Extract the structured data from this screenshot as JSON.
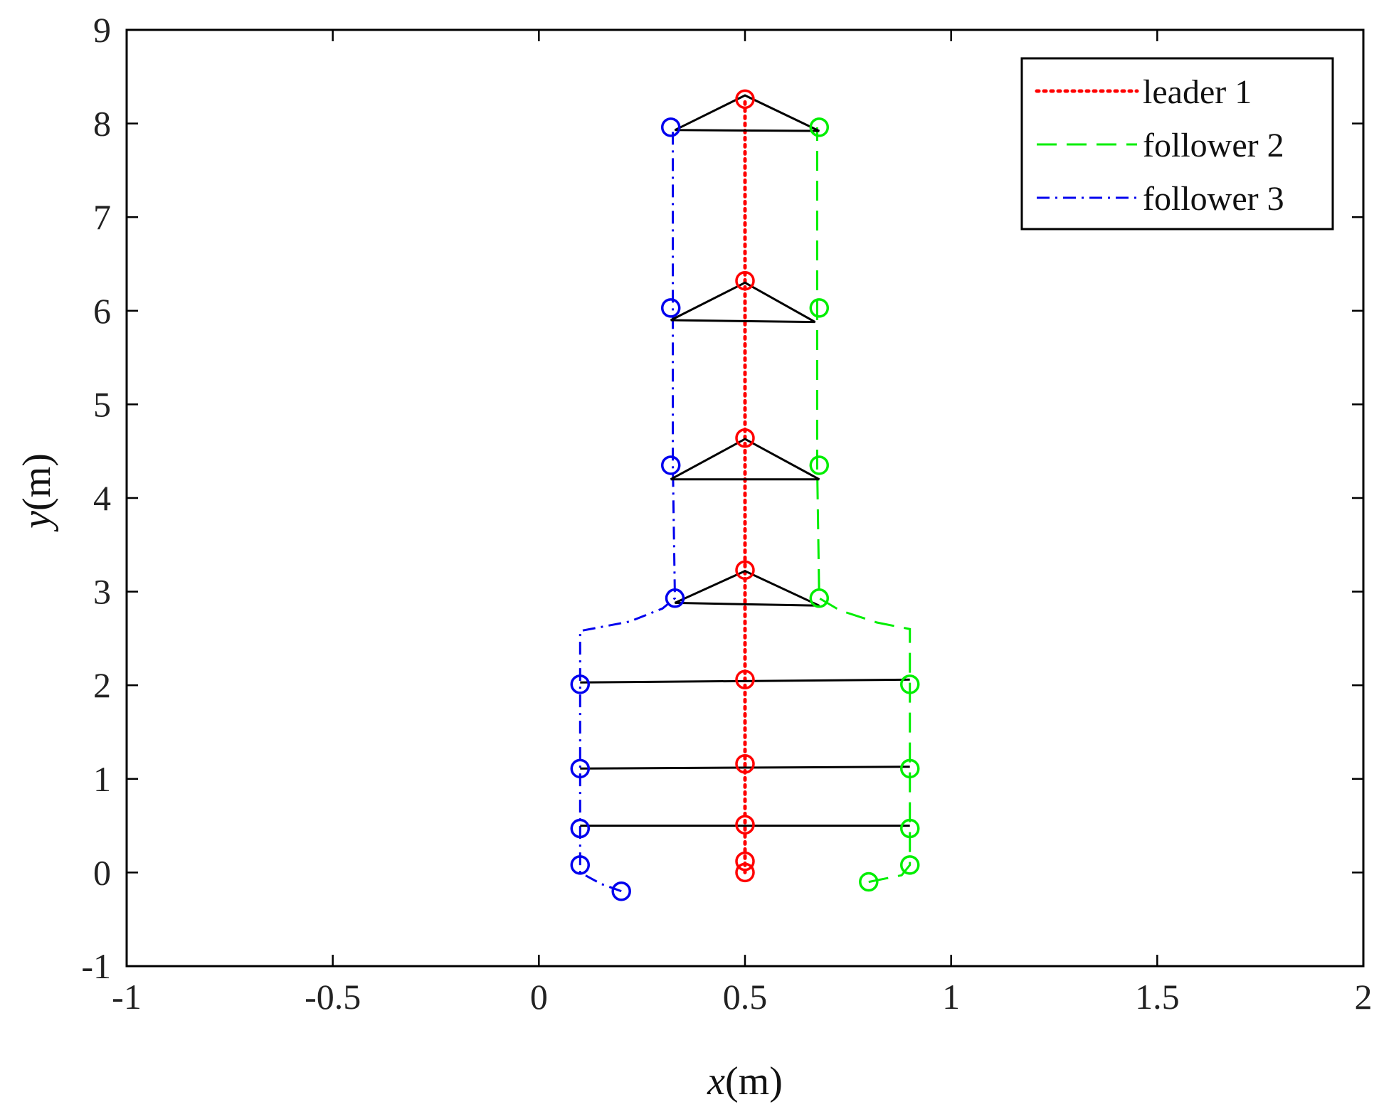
{
  "chart_data": {
    "type": "line",
    "title": "",
    "xlabel": {
      "var": "x",
      "unit": "(m)"
    },
    "ylabel": {
      "var": "y",
      "unit": "(m)"
    },
    "xlim": [
      -1,
      2
    ],
    "ylim": [
      -1,
      9
    ],
    "xticks": [
      -1,
      -0.5,
      0,
      0.5,
      1,
      1.5,
      2
    ],
    "xtick_labels": [
      "-1",
      "-0.5",
      "0",
      "0.5",
      "1",
      "1.5",
      "2"
    ],
    "yticks": [
      -1,
      0,
      1,
      2,
      3,
      4,
      5,
      6,
      7,
      8,
      9
    ],
    "ytick_labels": [
      "-1",
      "0",
      "1",
      "2",
      "3",
      "4",
      "5",
      "6",
      "7",
      "8",
      "9"
    ],
    "grid": false,
    "legend_position": "top-right",
    "series": [
      {
        "name": "leader 1",
        "color": "#ff0000",
        "style": "dotted",
        "path": [
          [
            0.5,
            0.0
          ],
          [
            0.5,
            0.12
          ],
          [
            0.5,
            0.5
          ],
          [
            0.5,
            1.12
          ],
          [
            0.5,
            2.05
          ],
          [
            0.5,
            3.22
          ],
          [
            0.5,
            4.63
          ],
          [
            0.5,
            6.3
          ],
          [
            0.5,
            8.26
          ]
        ],
        "markers": [
          [
            0.5,
            0.0
          ],
          [
            0.5,
            0.12
          ],
          [
            0.5,
            0.51
          ],
          [
            0.5,
            1.16
          ],
          [
            0.5,
            2.06
          ],
          [
            0.5,
            3.23
          ],
          [
            0.5,
            4.64
          ],
          [
            0.5,
            6.32
          ],
          [
            0.5,
            8.26
          ]
        ]
      },
      {
        "name": "follower 2",
        "color": "#00ee00",
        "style": "dashed",
        "path": [
          [
            0.8,
            -0.1
          ],
          [
            0.88,
            -0.03
          ],
          [
            0.9,
            0.08
          ],
          [
            0.9,
            0.47
          ],
          [
            0.9,
            1.1
          ],
          [
            0.9,
            2.02
          ],
          [
            0.9,
            2.6
          ],
          [
            0.82,
            2.67
          ],
          [
            0.73,
            2.8
          ],
          [
            0.68,
            2.93
          ],
          [
            0.675,
            4.35
          ],
          [
            0.675,
            6.03
          ],
          [
            0.675,
            7.96
          ]
        ],
        "markers": [
          [
            0.8,
            -0.1
          ],
          [
            0.9,
            0.08
          ],
          [
            0.9,
            0.47
          ],
          [
            0.9,
            1.11
          ],
          [
            0.9,
            2.01
          ],
          [
            0.68,
            2.93
          ],
          [
            0.68,
            4.35
          ],
          [
            0.68,
            6.03
          ],
          [
            0.68,
            7.96
          ]
        ]
      },
      {
        "name": "follower 3",
        "color": "#0000ee",
        "style": "dashdot",
        "path": [
          [
            0.2,
            -0.2
          ],
          [
            0.15,
            -0.12
          ],
          [
            0.1,
            0.0
          ],
          [
            0.1,
            0.08
          ],
          [
            0.1,
            0.47
          ],
          [
            0.1,
            1.1
          ],
          [
            0.1,
            2.02
          ],
          [
            0.1,
            2.58
          ],
          [
            0.22,
            2.68
          ],
          [
            0.3,
            2.82
          ],
          [
            0.33,
            2.93
          ],
          [
            0.325,
            4.35
          ],
          [
            0.325,
            6.03
          ],
          [
            0.325,
            7.96
          ]
        ],
        "markers": [
          [
            0.2,
            -0.2
          ],
          [
            0.1,
            0.08
          ],
          [
            0.1,
            0.47
          ],
          [
            0.1,
            1.11
          ],
          [
            0.1,
            2.01
          ],
          [
            0.33,
            2.93
          ],
          [
            0.32,
            4.35
          ],
          [
            0.32,
            6.03
          ],
          [
            0.32,
            7.96
          ]
        ]
      }
    ],
    "formation_links": [
      {
        "type": "line",
        "points": [
          [
            0.1,
            0.5
          ],
          [
            0.9,
            0.5
          ]
        ]
      },
      {
        "type": "line",
        "points": [
          [
            0.1,
            1.11
          ],
          [
            0.9,
            1.13
          ]
        ]
      },
      {
        "type": "line",
        "points": [
          [
            0.1,
            2.03
          ],
          [
            0.9,
            2.06
          ]
        ]
      },
      {
        "type": "triangle",
        "points": [
          [
            0.33,
            2.88
          ],
          [
            0.5,
            3.22
          ],
          [
            0.68,
            2.85
          ]
        ]
      },
      {
        "type": "triangle",
        "points": [
          [
            0.32,
            4.2
          ],
          [
            0.5,
            4.63
          ],
          [
            0.68,
            4.2
          ]
        ]
      },
      {
        "type": "triangle",
        "points": [
          [
            0.32,
            5.9
          ],
          [
            0.5,
            6.3
          ],
          [
            0.67,
            5.88
          ]
        ]
      },
      {
        "type": "triangle",
        "points": [
          [
            0.33,
            7.93
          ],
          [
            0.5,
            8.3
          ],
          [
            0.68,
            7.92
          ]
        ]
      }
    ]
  },
  "colors": {
    "axis": "#000000",
    "link": "#000000"
  }
}
